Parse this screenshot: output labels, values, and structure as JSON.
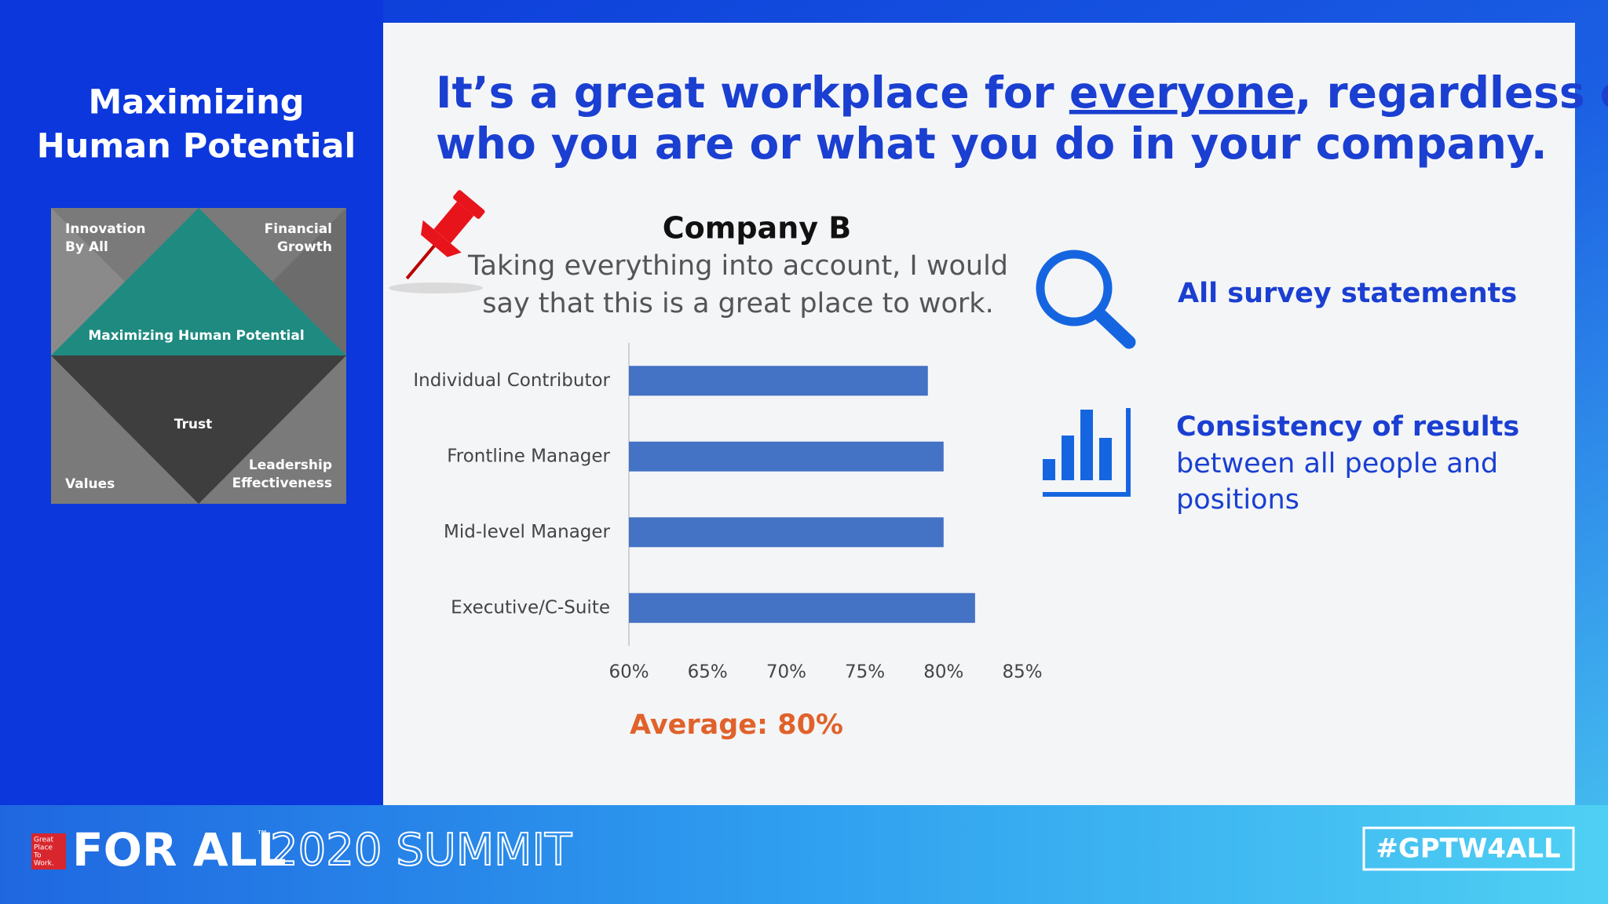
{
  "sidebar": {
    "title_lines": [
      "Maximizing",
      "Human Potential"
    ],
    "diagram": {
      "top_left": [
        "Innovation",
        "By All"
      ],
      "top_right": [
        "Financial",
        "Growth"
      ],
      "band": "Maximizing Human Potential",
      "center": "Trust",
      "bottom_left": "Values",
      "bottom_right": [
        "Leadership",
        "Effectiveness"
      ]
    }
  },
  "heading": {
    "line1_before": "It’s a great workplace for ",
    "emphasis": "everyone",
    "line1_after": ", regardless of",
    "line2": "who you are or what you do in your company."
  },
  "chart_data": {
    "type": "bar",
    "orientation": "horizontal",
    "title": "Company B",
    "subtitle": [
      "Taking everything into account, I would",
      "say that this is a great place to work."
    ],
    "categories": [
      "Individual Contributor",
      "Frontline Manager",
      "Mid-level Manager",
      "Executive/C-Suite"
    ],
    "values": [
      79,
      80,
      80,
      82
    ],
    "color": "#4472c4",
    "xlim": [
      60,
      85
    ],
    "xticks": [
      {
        "value": 60,
        "label": "60%"
      },
      {
        "value": 65,
        "label": "65%"
      },
      {
        "value": 70,
        "label": "70%"
      },
      {
        "value": 75,
        "label": "75%"
      },
      {
        "value": 80,
        "label": "80%"
      },
      {
        "value": 85,
        "label": "85%"
      }
    ],
    "grid": false,
    "annotation": "Average: 80%"
  },
  "callouts": [
    {
      "bold": "All survey statements"
    },
    {
      "bold": "Consistency of results",
      "lines": [
        "between all people and",
        "positions"
      ]
    }
  ],
  "footer": {
    "logo": [
      "Great",
      "Place",
      "To",
      "Work."
    ],
    "event": "FOR ALL",
    "trademark": "™",
    "edition": "2020 SUMMIT",
    "hashtag": "#GPTW4ALL"
  }
}
